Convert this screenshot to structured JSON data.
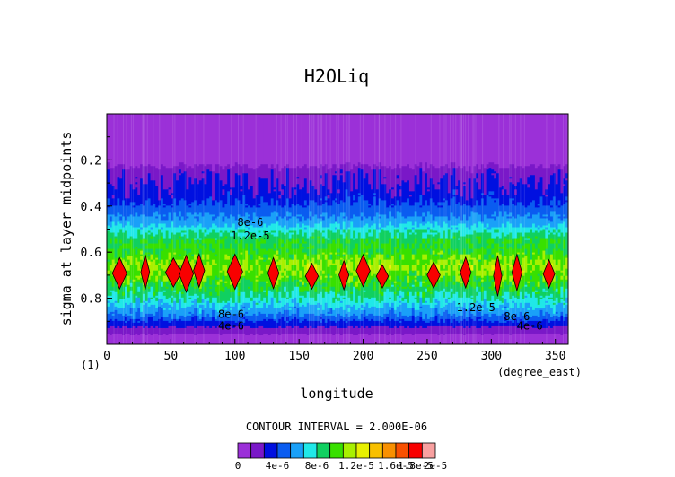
{
  "chart_data": {
    "type": "heatmap",
    "title": "H2OLiq",
    "xlabel": "longitude",
    "ylabel": "sigma at layer midpoints",
    "x_unit": "(degree_east)",
    "corner_label": "(1)",
    "xlim": [
      0,
      360
    ],
    "ylim": [
      1.0,
      0.0
    ],
    "x_ticks": [
      0,
      50,
      100,
      150,
      200,
      250,
      300,
      350
    ],
    "y_ticks": [
      0.2,
      0.4,
      0.6,
      0.8
    ],
    "contour_interval_text": "CONTOUR INTERVAL = 2.000E-06",
    "colorbar": {
      "tick_labels": [
        "0",
        "4e-6",
        "8e-6",
        "1.2e-5",
        "1.6e-5",
        "1.8e-5",
        "2e-5"
      ],
      "colors": [
        "#9b30d8",
        "#7a18c8",
        "#0010e0",
        "#0a5cf0",
        "#1aa0f8",
        "#20e8e8",
        "#10d060",
        "#38e000",
        "#a8f000",
        "#e8f000",
        "#f8c000",
        "#f89000",
        "#f85000",
        "#f80000",
        "#f8a0a0"
      ]
    },
    "profile": {
      "sigma": [
        0.0,
        0.2,
        0.24,
        0.3,
        0.36,
        0.42,
        0.47,
        0.51,
        0.55,
        0.6,
        0.66,
        0.7,
        0.75,
        0.79,
        0.83,
        0.87,
        0.91,
        0.94,
        0.97,
        1.0
      ],
      "value": [
        0.0,
        0.0,
        3e-06,
        4e-06,
        5e-06,
        7e-06,
        9e-06,
        1.15e-05,
        1.35e-05,
        1.45e-05,
        1.6e-05,
        1.5e-05,
        1.35e-05,
        1.2e-05,
        1e-05,
        8e-06,
        5e-06,
        3e-06,
        1e-06,
        0.0
      ]
    },
    "contour_labels": [
      {
        "text": "8e-6",
        "lon": 112,
        "sigma": 0.47
      },
      {
        "text": "1.2e-5",
        "lon": 112,
        "sigma": 0.53
      },
      {
        "text": "1.2e-5",
        "lon": 288,
        "sigma": 0.84
      },
      {
        "text": "8e-6",
        "lon": 320,
        "sigma": 0.88
      },
      {
        "text": "8e-6",
        "lon": 97,
        "sigma": 0.87
      },
      {
        "text": "4e-6",
        "lon": 97,
        "sigma": 0.92
      },
      {
        "text": "4e-6",
        "lon": 330,
        "sigma": 0.92
      }
    ],
    "maxima_lon": [
      10,
      30,
      52,
      62,
      72,
      100,
      130,
      160,
      185,
      200,
      215,
      255,
      280,
      305,
      320,
      345
    ]
  }
}
